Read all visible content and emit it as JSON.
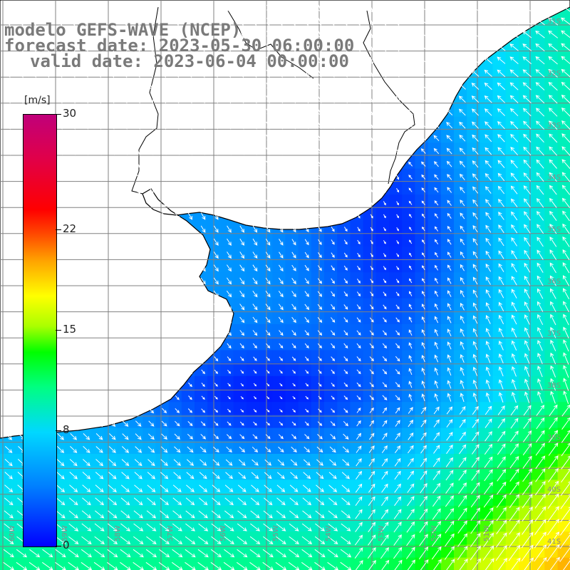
{
  "title": {
    "line1": "modelo GEFS-WAVE (NCEP)",
    "line2": "forecast date: 2023-05-30 06:00:00",
    "line3": "valid date: 2023-06-04 00:00:00"
  },
  "colorbar": {
    "units": "[m/s]",
    "ticks": [
      "30",
      "22",
      "15",
      "8",
      "0"
    ],
    "tick_values": [
      30,
      22,
      15,
      8,
      0
    ],
    "range": [
      0,
      30
    ]
  },
  "map_grid": {
    "lat_labels": [
      "31S",
      "32S",
      "33S",
      "34S",
      "35S",
      "36S",
      "37S",
      "38S",
      "39S",
      "40S",
      "41S"
    ],
    "lon_labels": [
      "60W",
      "59W",
      "58W",
      "57W",
      "56W",
      "55W",
      "54W",
      "53W",
      "52W",
      "51W"
    ]
  },
  "field": {
    "variable": "wind speed",
    "land_color": "#ffffff",
    "coast_color": "#000000",
    "grid_color": "#808080",
    "arrow_color": "#ffffff"
  }
}
